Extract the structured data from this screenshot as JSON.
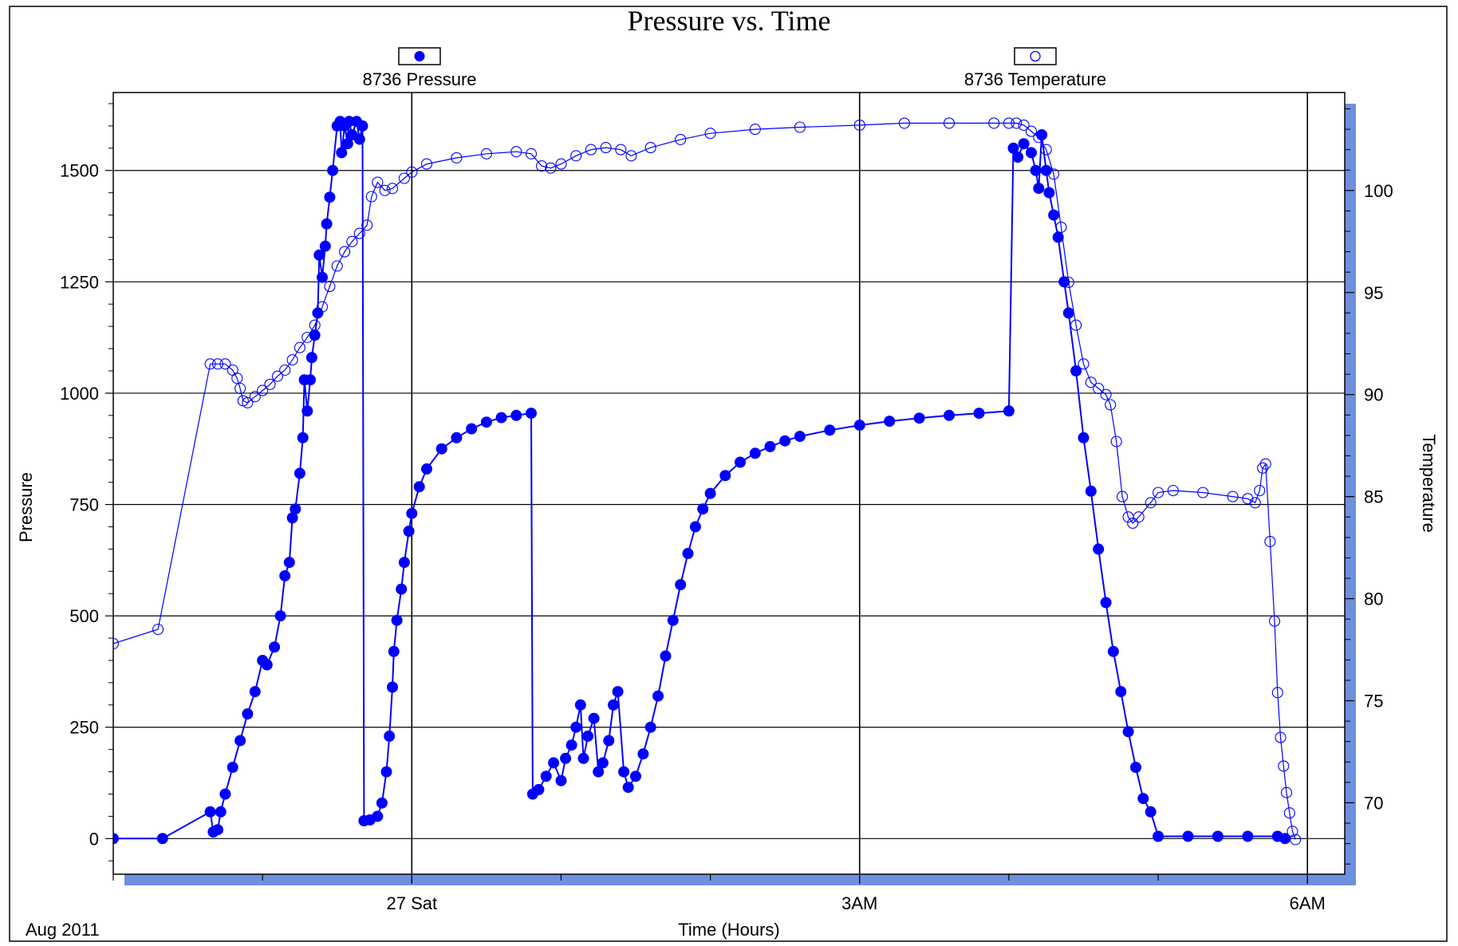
{
  "colors": {
    "series": "#0000ff",
    "shadow": "#6f8fdf",
    "grid": "#000000",
    "frame": "#000000"
  },
  "chart_data": {
    "type": "scatter",
    "title": "Pressure vs. Time",
    "xlabel": "Time (Hours)",
    "ylabel": "Pressure",
    "y2label": "Temperature",
    "corner_label": "Aug 2011",
    "x_unit": "hours",
    "xlim": [
      -2.0,
      6.25
    ],
    "ylim": [
      -80,
      1675
    ],
    "y2lim": [
      66.5,
      104.8
    ],
    "xticks": [
      {
        "x": 0,
        "label": "27 Sat"
      },
      {
        "x": 3,
        "label": "3AM"
      },
      {
        "x": 6,
        "label": "6AM"
      }
    ],
    "yticks": [
      0,
      250,
      500,
      750,
      1000,
      1250,
      1500
    ],
    "y2ticks": [
      70,
      75,
      80,
      85,
      90,
      95,
      100
    ],
    "grid": true,
    "legend": [
      {
        "name": "8736 Pressure",
        "marker": "filled-circle"
      },
      {
        "name": "8736 Temperature",
        "marker": "open-circle"
      }
    ],
    "series": [
      {
        "name": "8736 Pressure",
        "axis": "left",
        "marker": "filled",
        "points": [
          [
            -2.15,
            0
          ],
          [
            -2.0,
            0
          ],
          [
            -1.67,
            0
          ],
          [
            -1.35,
            60
          ],
          [
            -1.33,
            15
          ],
          [
            -1.3,
            20
          ],
          [
            -1.28,
            60
          ],
          [
            -1.25,
            100
          ],
          [
            -1.2,
            160
          ],
          [
            -1.15,
            220
          ],
          [
            -1.1,
            280
          ],
          [
            -1.05,
            330
          ],
          [
            -1.0,
            400
          ],
          [
            -0.97,
            390
          ],
          [
            -0.92,
            430
          ],
          [
            -0.88,
            500
          ],
          [
            -0.85,
            590
          ],
          [
            -0.82,
            620
          ],
          [
            -0.8,
            720
          ],
          [
            -0.78,
            740
          ],
          [
            -0.75,
            820
          ],
          [
            -0.73,
            900
          ],
          [
            -0.72,
            1030
          ],
          [
            -0.7,
            960
          ],
          [
            -0.68,
            1030
          ],
          [
            -0.67,
            1080
          ],
          [
            -0.65,
            1130
          ],
          [
            -0.63,
            1180
          ],
          [
            -0.62,
            1310
          ],
          [
            -0.6,
            1260
          ],
          [
            -0.58,
            1330
          ],
          [
            -0.57,
            1380
          ],
          [
            -0.55,
            1440
          ],
          [
            -0.53,
            1500
          ],
          [
            -0.5,
            1600
          ],
          [
            -0.48,
            1610
          ],
          [
            -0.47,
            1540
          ],
          [
            -0.45,
            1600
          ],
          [
            -0.43,
            1560
          ],
          [
            -0.42,
            1610
          ],
          [
            -0.4,
            1580
          ],
          [
            -0.37,
            1610
          ],
          [
            -0.35,
            1570
          ],
          [
            -0.33,
            1600
          ],
          [
            -0.32,
            40
          ],
          [
            -0.28,
            42
          ],
          [
            -0.23,
            50
          ],
          [
            -0.2,
            80
          ],
          [
            -0.17,
            150
          ],
          [
            -0.15,
            230
          ],
          [
            -0.13,
            340
          ],
          [
            -0.12,
            420
          ],
          [
            -0.1,
            490
          ],
          [
            -0.07,
            560
          ],
          [
            -0.05,
            620
          ],
          [
            -0.02,
            690
          ],
          [
            0.0,
            730
          ],
          [
            0.05,
            790
          ],
          [
            0.1,
            830
          ],
          [
            0.2,
            875
          ],
          [
            0.3,
            900
          ],
          [
            0.4,
            920
          ],
          [
            0.5,
            935
          ],
          [
            0.6,
            945
          ],
          [
            0.7,
            950
          ],
          [
            0.8,
            955
          ],
          [
            0.81,
            100
          ],
          [
            0.85,
            110
          ],
          [
            0.9,
            140
          ],
          [
            0.95,
            170
          ],
          [
            1.0,
            130
          ],
          [
            1.03,
            180
          ],
          [
            1.07,
            210
          ],
          [
            1.1,
            250
          ],
          [
            1.13,
            300
          ],
          [
            1.15,
            180
          ],
          [
            1.18,
            230
          ],
          [
            1.22,
            270
          ],
          [
            1.25,
            150
          ],
          [
            1.28,
            170
          ],
          [
            1.32,
            220
          ],
          [
            1.35,
            300
          ],
          [
            1.38,
            330
          ],
          [
            1.42,
            150
          ],
          [
            1.45,
            115
          ],
          [
            1.5,
            140
          ],
          [
            1.55,
            190
          ],
          [
            1.6,
            250
          ],
          [
            1.65,
            320
          ],
          [
            1.7,
            410
          ],
          [
            1.75,
            490
          ],
          [
            1.8,
            570
          ],
          [
            1.85,
            640
          ],
          [
            1.9,
            700
          ],
          [
            1.95,
            740
          ],
          [
            2.0,
            775
          ],
          [
            2.1,
            815
          ],
          [
            2.2,
            845
          ],
          [
            2.3,
            865
          ],
          [
            2.4,
            880
          ],
          [
            2.5,
            893
          ],
          [
            2.6,
            903
          ],
          [
            2.8,
            917
          ],
          [
            3.0,
            928
          ],
          [
            3.2,
            937
          ],
          [
            3.4,
            944
          ],
          [
            3.6,
            950
          ],
          [
            3.8,
            955
          ],
          [
            4.0,
            960
          ],
          [
            4.03,
            1550
          ],
          [
            4.06,
            1530
          ],
          [
            4.1,
            1560
          ],
          [
            4.15,
            1540
          ],
          [
            4.18,
            1500
          ],
          [
            4.2,
            1460
          ],
          [
            4.22,
            1580
          ],
          [
            4.25,
            1500
          ],
          [
            4.27,
            1450
          ],
          [
            4.3,
            1400
          ],
          [
            4.33,
            1350
          ],
          [
            4.37,
            1250
          ],
          [
            4.4,
            1180
          ],
          [
            4.45,
            1050
          ],
          [
            4.5,
            900
          ],
          [
            4.55,
            780
          ],
          [
            4.6,
            650
          ],
          [
            4.65,
            530
          ],
          [
            4.7,
            420
          ],
          [
            4.75,
            330
          ],
          [
            4.8,
            240
          ],
          [
            4.85,
            160
          ],
          [
            4.9,
            90
          ],
          [
            4.95,
            60
          ],
          [
            5.0,
            5
          ],
          [
            5.2,
            5
          ],
          [
            5.4,
            5
          ],
          [
            5.6,
            5
          ],
          [
            5.8,
            5
          ],
          [
            5.85,
            0
          ]
        ]
      },
      {
        "name": "8736 Temperature",
        "axis": "right",
        "marker": "open",
        "points": [
          [
            -2.15,
            74.8
          ],
          [
            -2.14,
            75.6
          ],
          [
            -2.12,
            76.3
          ],
          [
            -2.11,
            76.8
          ],
          [
            -2.1,
            77.2
          ],
          [
            -2.09,
            77.4
          ],
          [
            -2.0,
            77.8
          ],
          [
            -1.7,
            78.5
          ],
          [
            -1.35,
            91.5
          ],
          [
            -1.3,
            91.5
          ],
          [
            -1.25,
            91.5
          ],
          [
            -1.2,
            91.2
          ],
          [
            -1.17,
            90.8
          ],
          [
            -1.15,
            90.3
          ],
          [
            -1.13,
            89.7
          ],
          [
            -1.1,
            89.6
          ],
          [
            -1.05,
            89.9
          ],
          [
            -1.0,
            90.2
          ],
          [
            -0.95,
            90.5
          ],
          [
            -0.9,
            90.9
          ],
          [
            -0.85,
            91.2
          ],
          [
            -0.8,
            91.7
          ],
          [
            -0.75,
            92.3
          ],
          [
            -0.7,
            92.8
          ],
          [
            -0.65,
            93.4
          ],
          [
            -0.6,
            94.3
          ],
          [
            -0.55,
            95.3
          ],
          [
            -0.5,
            96.3
          ],
          [
            -0.45,
            97.0
          ],
          [
            -0.4,
            97.5
          ],
          [
            -0.35,
            97.9
          ],
          [
            -0.3,
            98.3
          ],
          [
            -0.27,
            99.7
          ],
          [
            -0.23,
            100.4
          ],
          [
            -0.18,
            100.0
          ],
          [
            -0.13,
            100.1
          ],
          [
            -0.05,
            100.6
          ],
          [
            0.0,
            100.9
          ],
          [
            0.1,
            101.3
          ],
          [
            0.3,
            101.6
          ],
          [
            0.5,
            101.8
          ],
          [
            0.7,
            101.9
          ],
          [
            0.8,
            101.8
          ],
          [
            0.87,
            101.2
          ],
          [
            0.93,
            101.1
          ],
          [
            1.0,
            101.3
          ],
          [
            1.1,
            101.7
          ],
          [
            1.2,
            102.0
          ],
          [
            1.3,
            102.1
          ],
          [
            1.4,
            102.0
          ],
          [
            1.47,
            101.7
          ],
          [
            1.6,
            102.1
          ],
          [
            1.8,
            102.5
          ],
          [
            2.0,
            102.8
          ],
          [
            2.3,
            103.0
          ],
          [
            2.6,
            103.1
          ],
          [
            3.0,
            103.2
          ],
          [
            3.3,
            103.3
          ],
          [
            3.6,
            103.3
          ],
          [
            3.9,
            103.3
          ],
          [
            4.0,
            103.3
          ],
          [
            4.05,
            103.3
          ],
          [
            4.1,
            103.2
          ],
          [
            4.15,
            102.9
          ],
          [
            4.2,
            102.6
          ],
          [
            4.25,
            102.0
          ],
          [
            4.3,
            100.8
          ],
          [
            4.35,
            98.2
          ],
          [
            4.4,
            95.5
          ],
          [
            4.45,
            93.4
          ],
          [
            4.5,
            91.5
          ],
          [
            4.55,
            90.6
          ],
          [
            4.6,
            90.3
          ],
          [
            4.65,
            90.0
          ],
          [
            4.68,
            89.5
          ],
          [
            4.72,
            87.7
          ],
          [
            4.76,
            85.0
          ],
          [
            4.8,
            84.0
          ],
          [
            4.83,
            83.7
          ],
          [
            4.87,
            84.0
          ],
          [
            4.95,
            84.7
          ],
          [
            5.0,
            85.2
          ],
          [
            5.1,
            85.3
          ],
          [
            5.3,
            85.2
          ],
          [
            5.5,
            85.0
          ],
          [
            5.6,
            84.9
          ],
          [
            5.65,
            84.7
          ],
          [
            5.68,
            85.3
          ],
          [
            5.7,
            86.4
          ],
          [
            5.72,
            86.6
          ],
          [
            5.75,
            82.8
          ],
          [
            5.78,
            78.9
          ],
          [
            5.8,
            75.4
          ],
          [
            5.82,
            73.2
          ],
          [
            5.84,
            71.8
          ],
          [
            5.86,
            70.5
          ],
          [
            5.88,
            69.5
          ],
          [
            5.9,
            68.6
          ],
          [
            5.92,
            68.2
          ]
        ]
      }
    ]
  }
}
